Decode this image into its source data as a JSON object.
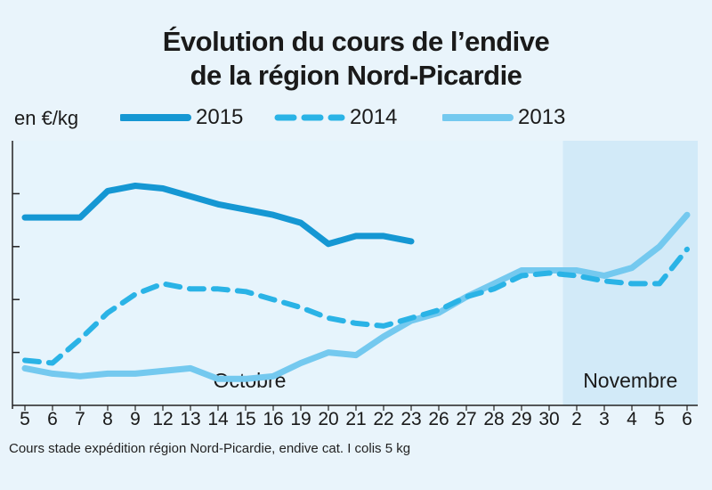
{
  "title_line1": "Évolution du cours de l’endive",
  "title_line2": "de la région Nord-Picardie",
  "unit_label": "en €/kg",
  "footnote": "Cours stade expédition région Nord-Picardie, endive cat. I colis 5 kg",
  "colors": {
    "y2015": "#1597d3",
    "y2014": "#2ab3e6",
    "y2013": "#74c9ef",
    "plot_bg": "#e6f4fc",
    "november_bg": "#d2eaf8"
  },
  "chart_data": {
    "type": "line",
    "title": "Évolution du cours de l’endive de la région Nord-Picardie",
    "ylabel": "en €/kg",
    "months": [
      "Octobre",
      "Novembre"
    ],
    "categories": [
      "5",
      "6",
      "7",
      "8",
      "9",
      "12",
      "13",
      "14",
      "15",
      "16",
      "19",
      "20",
      "21",
      "22",
      "23",
      "26",
      "27",
      "28",
      "29",
      "30",
      "2",
      "3",
      "4",
      "5",
      "6"
    ],
    "month_of_category": [
      "Octobre",
      "Octobre",
      "Octobre",
      "Octobre",
      "Octobre",
      "Octobre",
      "Octobre",
      "Octobre",
      "Octobre",
      "Octobre",
      "Octobre",
      "Octobre",
      "Octobre",
      "Octobre",
      "Octobre",
      "Octobre",
      "Octobre",
      "Octobre",
      "Octobre",
      "Octobre",
      "Novembre",
      "Novembre",
      "Novembre",
      "Novembre",
      "Novembre"
    ],
    "ylim": [
      0,
      5
    ],
    "y_ticks": [
      1,
      2,
      3,
      4
    ],
    "y_tick_labels_printed": false,
    "series": [
      {
        "name": "2015",
        "style": "solid-thick",
        "values": [
          3.55,
          3.55,
          3.55,
          4.05,
          4.15,
          4.1,
          3.95,
          3.8,
          3.7,
          3.6,
          3.45,
          3.05,
          3.2,
          3.2,
          3.1,
          null,
          null,
          null,
          null,
          null,
          null,
          null,
          null,
          null,
          null
        ]
      },
      {
        "name": "2014",
        "style": "dashed",
        "values": [
          0.85,
          0.8,
          1.25,
          1.75,
          2.1,
          2.3,
          2.2,
          2.2,
          2.15,
          2.0,
          1.85,
          1.65,
          1.55,
          1.5,
          1.65,
          1.8,
          2.05,
          2.2,
          2.45,
          2.5,
          2.45,
          2.35,
          2.3,
          2.3,
          2.95
        ]
      },
      {
        "name": "2013",
        "style": "solid-light",
        "values": [
          0.7,
          0.6,
          0.55,
          0.6,
          0.6,
          0.65,
          0.7,
          0.5,
          0.5,
          0.55,
          0.8,
          1.0,
          0.95,
          1.3,
          1.6,
          1.75,
          2.05,
          2.3,
          2.55,
          2.55,
          2.55,
          2.45,
          2.6,
          3.0,
          3.6
        ]
      }
    ],
    "legend": {
      "position": "top",
      "entries": [
        "2015",
        "2014",
        "2013"
      ]
    },
    "grid": false
  }
}
